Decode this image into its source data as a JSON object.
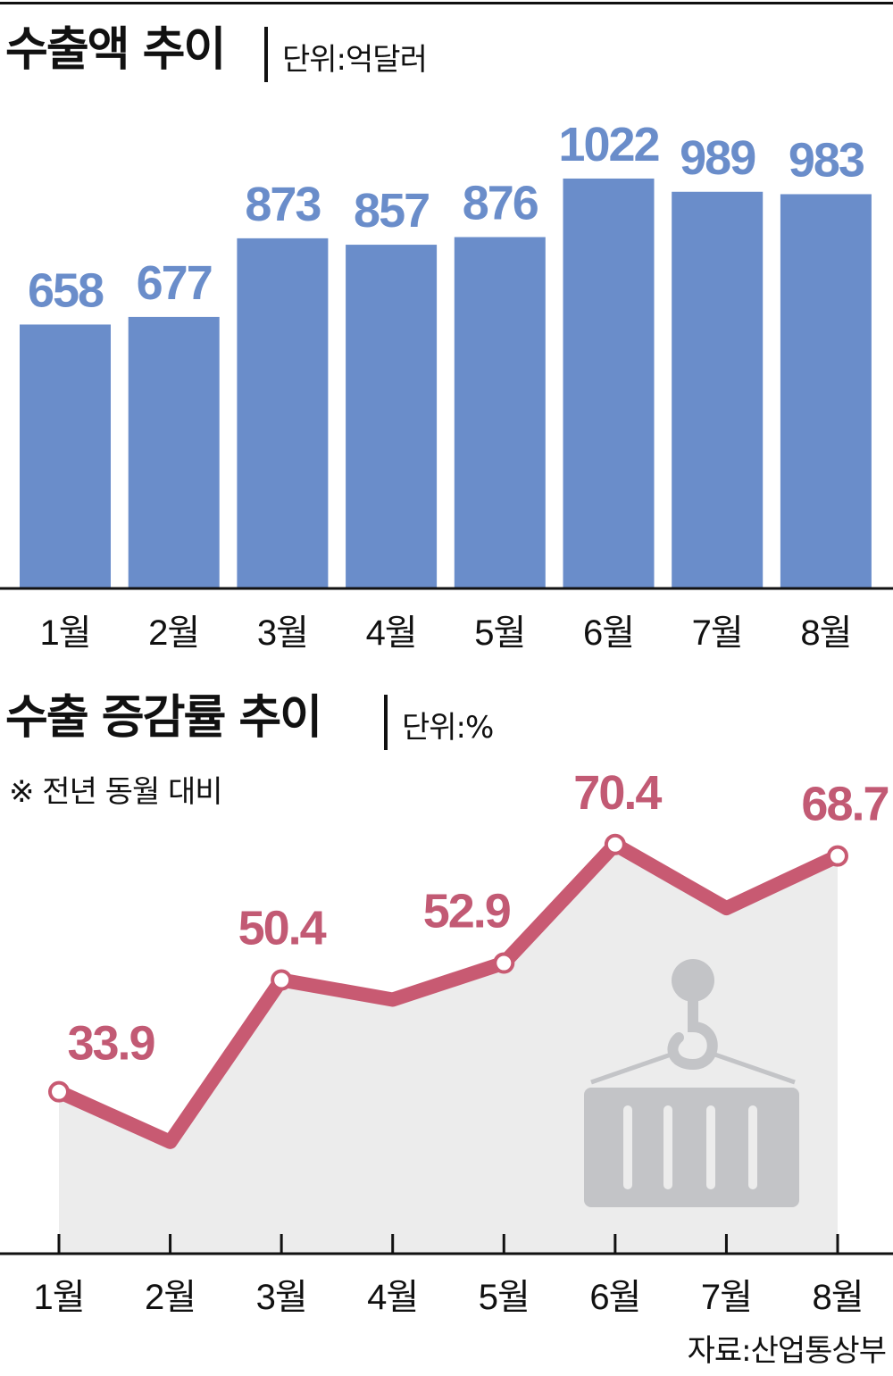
{
  "colors": {
    "bar": "#6a8dca",
    "line": "#c85a72",
    "area": "#ececec",
    "icon": "#c3c4c7"
  },
  "decoration": {
    "icon": "crane-hook-container-icon"
  },
  "chart1": {
    "title": "수출액 추이",
    "unit": "단위:억달러"
  },
  "chart2": {
    "title": "수출 증감률 추이",
    "unit": "단위:%",
    "note": "※ 전년 동월 대비"
  },
  "source": "자료:산업통상부",
  "chart_data": [
    {
      "type": "bar",
      "title": "수출액 추이",
      "unit": "단위:억달러",
      "categories": [
        "1월",
        "2월",
        "3월",
        "4월",
        "5월",
        "6월",
        "7월",
        "8월"
      ],
      "values": [
        658,
        677,
        873,
        857,
        876,
        1022,
        989,
        983
      ],
      "value_labels": [
        "658",
        "677",
        "873",
        "857",
        "876",
        "1022",
        "989",
        "983"
      ],
      "ylim": [
        0,
        1200
      ],
      "grid": false
    },
    {
      "type": "line",
      "title": "수출 증감률 추이",
      "unit": "단위:%",
      "note": "※ 전년 동월 대비",
      "categories": [
        "1월",
        "2월",
        "3월",
        "4월",
        "5월",
        "6월",
        "7월",
        "8월"
      ],
      "values": [
        33.9,
        26.5,
        50.4,
        47.5,
        52.9,
        70.4,
        61.0,
        68.7
      ],
      "labels": [
        "33.9",
        "",
        "50.4",
        "",
        "52.9",
        "70.4",
        "",
        "68.7"
      ],
      "ylim": [
        10,
        85
      ],
      "grid": false
    }
  ]
}
